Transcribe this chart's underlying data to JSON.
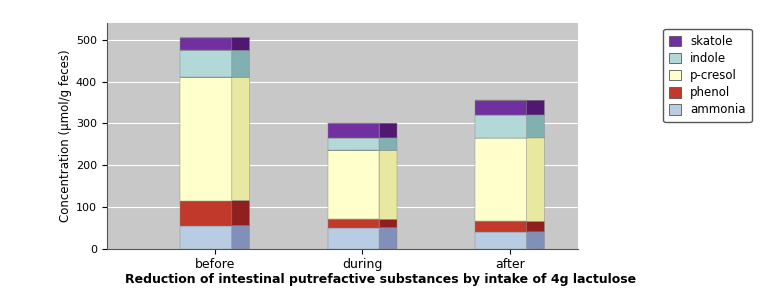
{
  "categories": [
    "before",
    "during",
    "after"
  ],
  "series_order": [
    "ammonia",
    "phenol",
    "p-cresol",
    "indole",
    "skatole"
  ],
  "series": {
    "ammonia": [
      55,
      50,
      40
    ],
    "phenol": [
      60,
      20,
      25
    ],
    "p-cresol": [
      295,
      165,
      200
    ],
    "indole": [
      65,
      30,
      55
    ],
    "skatole": [
      30,
      35,
      35
    ]
  },
  "colors_front": {
    "ammonia": "#b8cce4",
    "phenol": "#c0392b",
    "p-cresol": "#ffffcc",
    "indole": "#b2d8d8",
    "skatole": "#7030a0"
  },
  "colors_top": {
    "ammonia": "#d0dff0",
    "phenol": "#d45050",
    "p-cresol": "#fffff8",
    "indole": "#c8e8e8",
    "skatole": "#9050c0"
  },
  "colors_side": {
    "ammonia": "#8090b8",
    "phenol": "#902020",
    "p-cresol": "#e8e8a0",
    "indole": "#80b0b0",
    "skatole": "#501870"
  },
  "legend_order": [
    "skatole",
    "indole",
    "p-cresol",
    "phenol",
    "ammonia"
  ],
  "legend_labels": [
    "skatole",
    "indole",
    "p-cresol",
    "phenol",
    "ammonia"
  ],
  "ylabel": "Concentration (μmol/g feces)",
  "ylim": [
    0,
    540
  ],
  "yticks": [
    0,
    100,
    200,
    300,
    400,
    500
  ],
  "title": "Reduction of intestinal putrefactive substances by intake of 4g lactulose",
  "bar_width": 0.35,
  "depth": 0.15,
  "bg_color": "#c8c8c8",
  "outer_bg": "#e8e8e8",
  "box_bg": "#b8b8b8"
}
